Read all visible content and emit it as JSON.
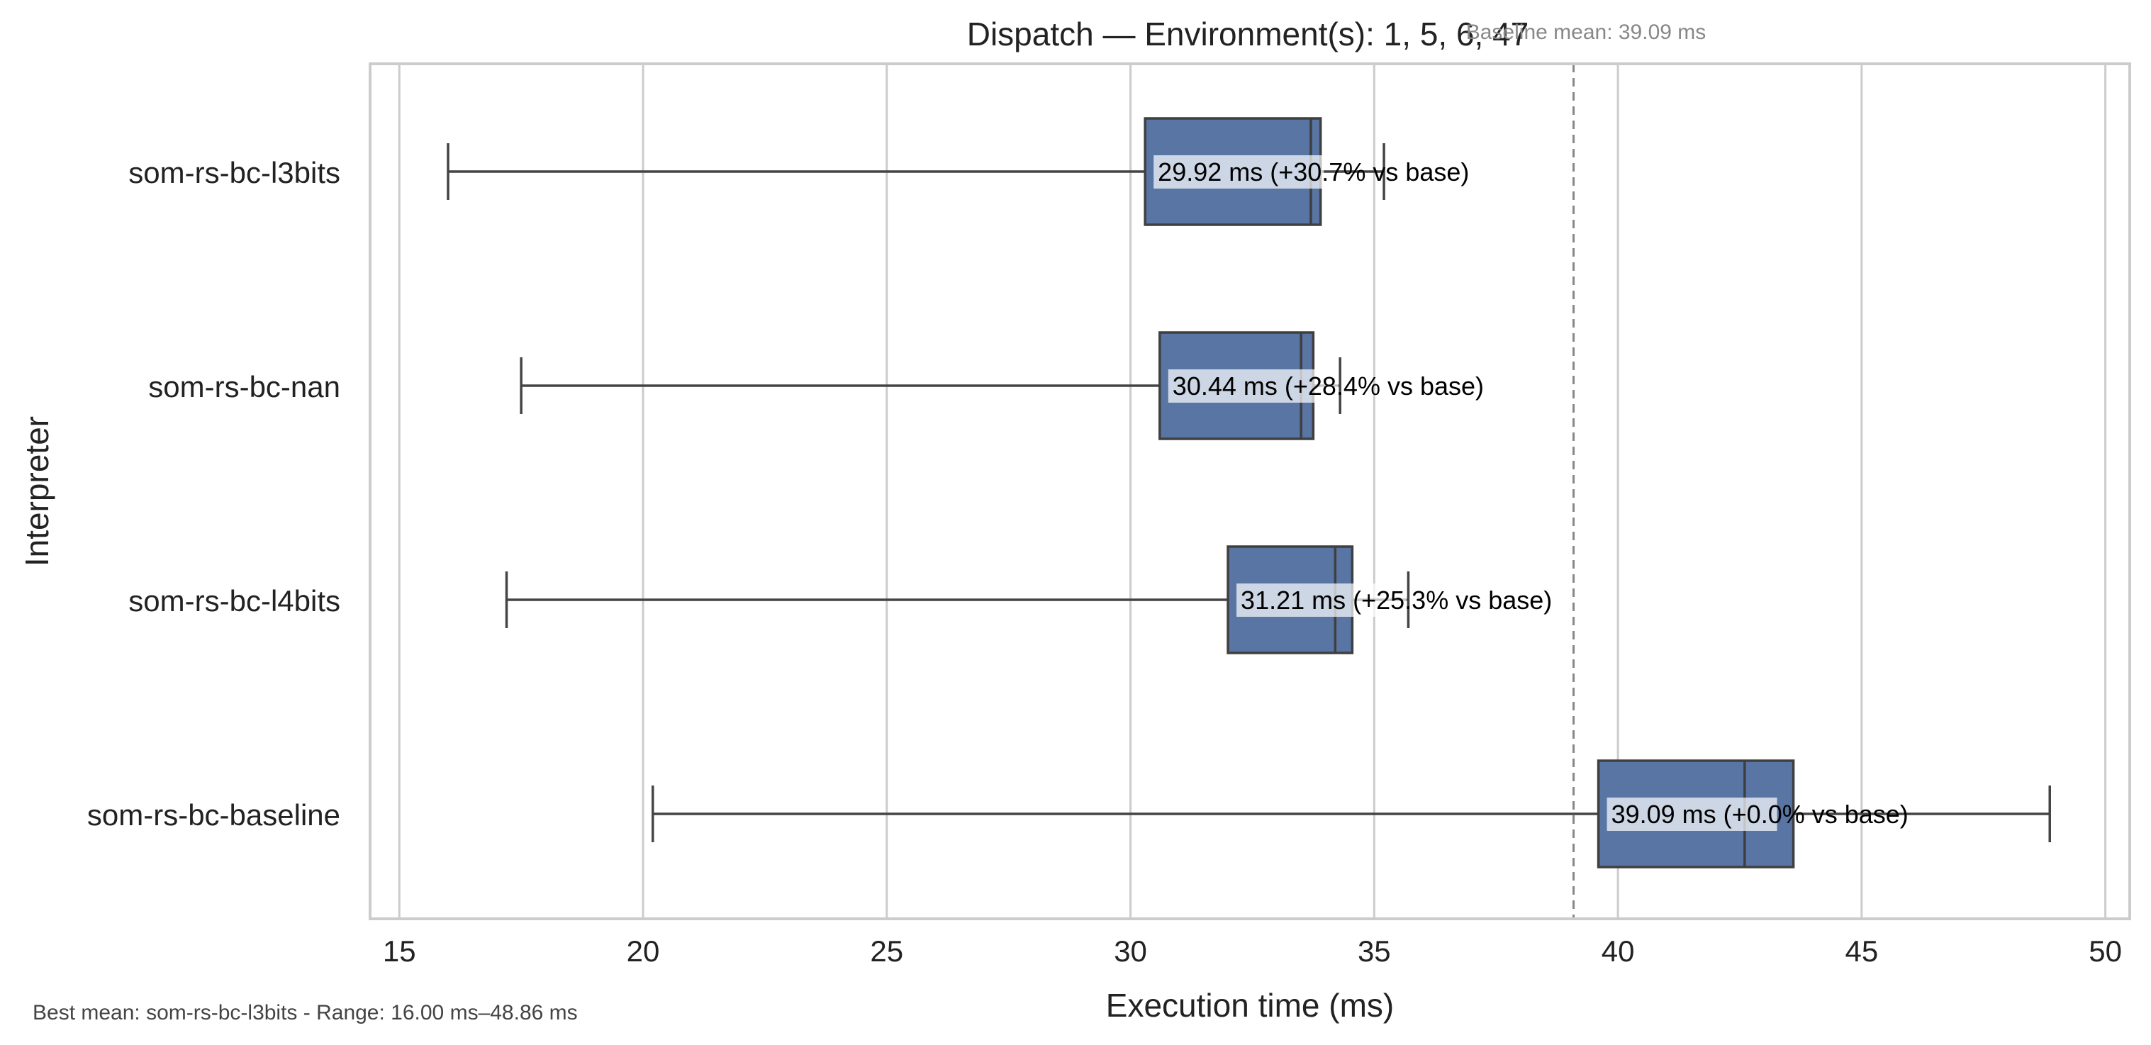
{
  "chart_data": {
    "type": "boxplot-horizontal",
    "title": "Dispatch — Environment(s): 1, 5, 6, 47",
    "xlabel": "Execution time (ms)",
    "ylabel": "Interpreter",
    "xlim": [
      14.4,
      50.5
    ],
    "xticks": [
      15,
      20,
      25,
      30,
      35,
      40,
      45,
      50
    ],
    "grid": "vertical",
    "box_color": "#5875a4",
    "baseline": {
      "value": 39.09,
      "label": "Baseline mean: 39.09 ms",
      "color": "#888888"
    },
    "categories": [
      "som-rs-bc-l3bits",
      "som-rs-bc-nan",
      "som-rs-bc-l4bits",
      "som-rs-bc-baseline"
    ],
    "series": [
      {
        "name": "som-rs-bc-l3bits",
        "whisker_low": 16.0,
        "q1": 30.3,
        "median": 33.7,
        "q3": 33.9,
        "whisker_high": 35.2,
        "mean_label": "29.92 ms  (+30.7% vs base)"
      },
      {
        "name": "som-rs-bc-nan",
        "whisker_low": 17.5,
        "q1": 30.6,
        "median": 33.5,
        "q3": 33.75,
        "whisker_high": 34.3,
        "mean_label": "30.44 ms  (+28.4% vs base)"
      },
      {
        "name": "som-rs-bc-l4bits",
        "whisker_low": 17.2,
        "q1": 32.0,
        "median": 34.2,
        "q3": 34.55,
        "whisker_high": 35.7,
        "mean_label": "31.21 ms  (+25.3% vs base)"
      },
      {
        "name": "som-rs-bc-baseline",
        "whisker_low": 20.2,
        "q1": 39.6,
        "median": 42.6,
        "q3": 43.6,
        "whisker_high": 48.86,
        "mean_label": "39.09 ms  (+0.0% vs base)"
      }
    ],
    "footnote": "Best mean: som-rs-bc-l3bits - Range: 16.00 ms–48.86 ms"
  }
}
